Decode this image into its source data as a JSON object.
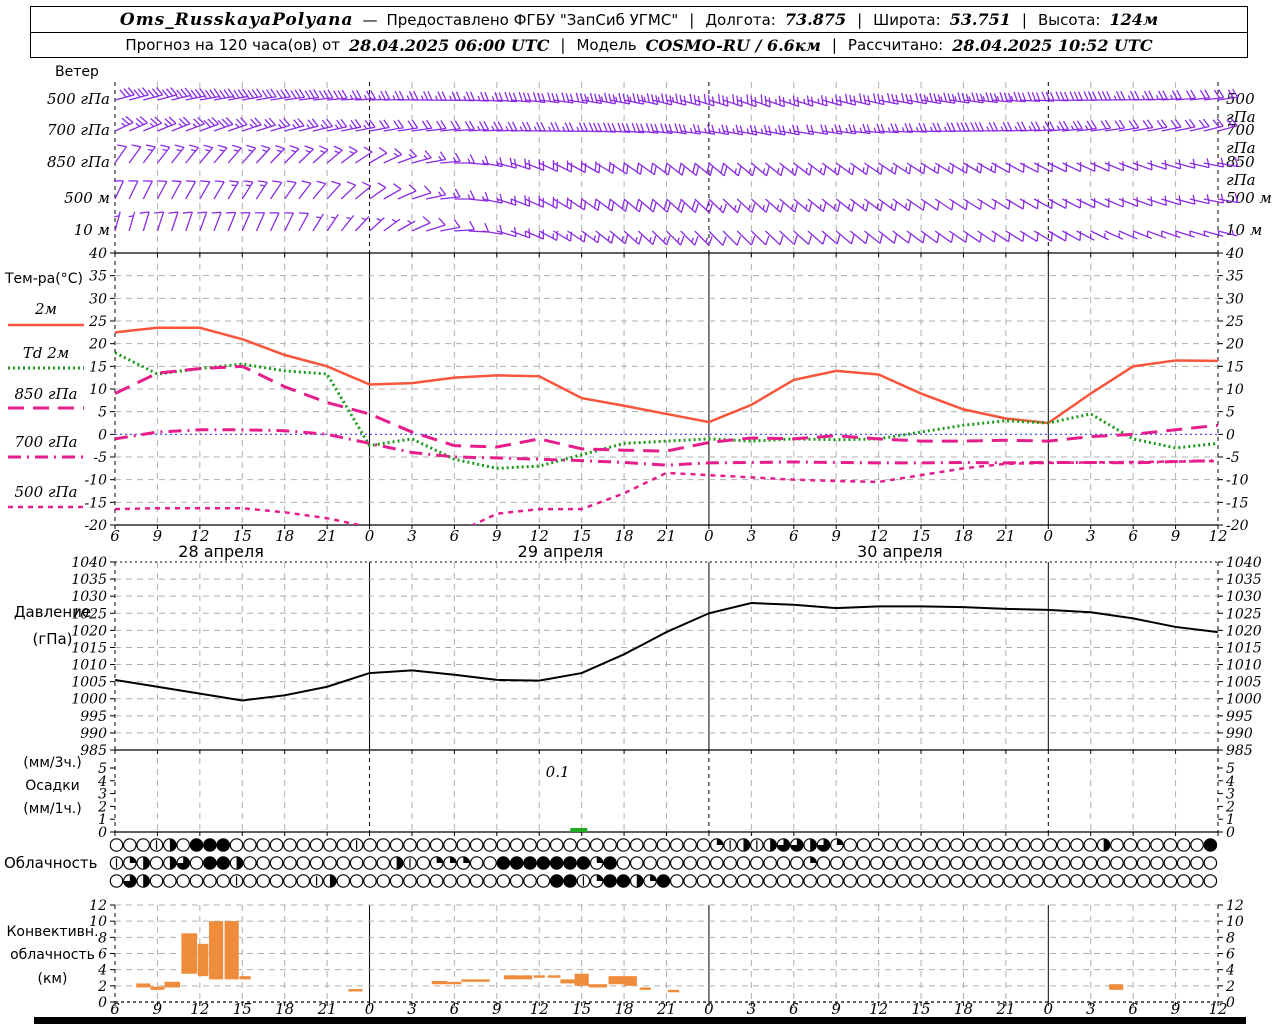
{
  "header": {
    "station": "Oms_RusskayaPolyana",
    "dash": "—",
    "provided_by": "Предоставлено ФГБУ \"ЗапСиб УГМС\"",
    "sep": "|",
    "lon_label": "Долгота:",
    "lon_value": "73.875",
    "lat_label": "Широта:",
    "lat_value": "53.751",
    "alt_label": "Высота:",
    "alt_value": "124м",
    "forecast_label": "Прогноз на 120 часа(ов) от",
    "run_datetime": "28.04.2025 06:00 UTC",
    "model_label": "Модель",
    "model_value": "COSMO-RU / 6.6км",
    "computed_label": "Рассчитано:",
    "computed_datetime": "28.04.2025 10:52 UTC"
  },
  "panel_labels": {
    "wind_title": "Ветер",
    "wind_levels": [
      "500 гПа",
      "700 гПа",
      "850 гПа",
      "500 м",
      "10 м"
    ],
    "temp_title": "Тем-ра(°C)",
    "temp_legend": [
      "2м",
      "Td 2м",
      "850 гПа",
      "700 гПа",
      "500 гПа"
    ],
    "pressure_title_1": "Давление",
    "pressure_title_2": "(гПа)",
    "precip_label_1": "(мм/3ч.)",
    "precip_label_2": "Осадки",
    "precip_label_3": "(мм/1ч.)",
    "cloud_title": "Облачность",
    "conv_title_1": "Конвективн.",
    "conv_title_2": "облачность",
    "conv_title_3": "(км)"
  },
  "axis": {
    "hours": [
      6,
      9,
      12,
      15,
      18,
      21,
      0,
      3,
      6,
      9,
      12,
      15,
      18,
      21,
      0,
      3,
      6,
      9,
      12,
      15,
      18,
      21,
      0,
      3,
      6,
      9,
      12
    ],
    "dates": [
      {
        "label": "28 апреля",
        "center_t": 7.5
      },
      {
        "label": "29 апреля",
        "center_t": 31.5
      },
      {
        "label": "30 апреля",
        "center_t": 55.5
      }
    ],
    "temp_ticks": [
      40,
      35,
      30,
      25,
      20,
      15,
      10,
      5,
      0,
      -5,
      -10,
      -15,
      -20
    ],
    "pressure_ticks": [
      1040,
      1035,
      1030,
      1025,
      1020,
      1015,
      1010,
      1005,
      1000,
      995,
      990,
      985
    ],
    "precip_ticks": [
      5,
      4,
      3,
      2,
      1,
      0
    ],
    "conv_ticks": [
      12,
      10,
      8,
      6,
      4,
      2,
      0
    ]
  },
  "colors": {
    "barb": "#8a2be2",
    "t2m": "#f8553c",
    "td2m": "#1a991a",
    "t850": "#e61e8c",
    "t700": "#e61e8c",
    "t500": "#e61e8c",
    "zero_line": "#3a3af0",
    "pressure": "#000000",
    "precip_bar": "#22aa22",
    "convective": "#ee8c3c",
    "grid": "#b0b0b0"
  },
  "chart_data": [
    {
      "id": "wind",
      "type": "wind-barbs",
      "unit": "kn",
      "x_hours_step": 3,
      "levels": [
        {
          "name": "500 гПа",
          "dir_deg": [
            255,
            255,
            260,
            260,
            262,
            265,
            268,
            270,
            272,
            275,
            278,
            280,
            282,
            285,
            288,
            290,
            288,
            285,
            282,
            280,
            278,
            275,
            272,
            270,
            268,
            265,
            262
          ],
          "speed_kn": [
            30,
            32,
            35,
            33,
            30,
            28,
            25,
            24,
            25,
            28,
            30,
            33,
            35,
            33,
            30,
            28,
            26,
            28,
            30,
            33,
            35,
            33,
            30,
            28,
            25,
            22,
            20
          ]
        },
        {
          "name": "700 гПа",
          "dir_deg": [
            245,
            248,
            250,
            252,
            255,
            258,
            260,
            262,
            265,
            268,
            270,
            272,
            275,
            278,
            280,
            282,
            280,
            278,
            275,
            272,
            270,
            268,
            265,
            262,
            260,
            258,
            255
          ],
          "speed_kn": [
            25,
            26,
            28,
            27,
            25,
            24,
            22,
            21,
            22,
            24,
            26,
            28,
            30,
            28,
            26,
            24,
            22,
            23,
            25,
            27,
            28,
            26,
            24,
            22,
            20,
            19,
            18
          ]
        },
        {
          "name": "850 гПа",
          "dir_deg": [
            215,
            218,
            220,
            222,
            225,
            230,
            240,
            255,
            270,
            285,
            295,
            300,
            305,
            308,
            310,
            310,
            308,
            306,
            304,
            302,
            300,
            298,
            296,
            294,
            290,
            285,
            280
          ],
          "speed_kn": [
            12,
            13,
            14,
            15,
            14,
            13,
            12,
            14,
            16,
            18,
            20,
            22,
            22,
            20,
            18,
            16,
            15,
            14,
            14,
            13,
            13,
            12,
            12,
            11,
            10,
            10,
            10
          ]
        },
        {
          "name": "500 м",
          "dir_deg": [
            205,
            208,
            210,
            212,
            215,
            222,
            235,
            252,
            270,
            288,
            298,
            305,
            310,
            312,
            314,
            312,
            310,
            308,
            306,
            304,
            302,
            300,
            298,
            295,
            290,
            285,
            280
          ],
          "speed_kn": [
            10,
            11,
            12,
            13,
            12,
            11,
            10,
            12,
            15,
            17,
            19,
            21,
            21,
            19,
            17,
            15,
            14,
            13,
            13,
            12,
            12,
            11,
            11,
            10,
            9,
            9,
            9
          ]
        },
        {
          "name": "10 м",
          "dir_deg": [
            195,
            198,
            200,
            203,
            206,
            214,
            228,
            246,
            266,
            286,
            298,
            306,
            312,
            315,
            316,
            314,
            312,
            310,
            308,
            306,
            304,
            302,
            300,
            296,
            292,
            288,
            284
          ],
          "speed_kn": [
            7,
            8,
            9,
            9,
            8,
            7,
            6,
            8,
            10,
            12,
            14,
            15,
            15,
            14,
            12,
            11,
            10,
            10,
            9,
            9,
            8,
            8,
            8,
            7,
            7,
            6,
            6
          ]
        }
      ]
    },
    {
      "id": "temperature",
      "type": "line",
      "ylabel": "Тем-ра(°C)",
      "ylim": [
        -20,
        40
      ],
      "x_hours_step": 3,
      "series": [
        {
          "name": "2м",
          "color": "#f8553c",
          "style": "solid",
          "values": [
            22.5,
            23.5,
            23.5,
            21.0,
            17.5,
            15.0,
            11.0,
            11.3,
            12.5,
            13.0,
            12.8,
            8.0,
            6.3,
            4.5,
            2.7,
            6.5,
            12.0,
            14.0,
            13.2,
            9.0,
            5.5,
            3.5,
            2.5,
            9.0,
            15.0,
            16.3,
            16.2
          ]
        },
        {
          "name": "Td 2м",
          "color": "#1a991a",
          "style": "dotted",
          "values": [
            18.0,
            13.3,
            14.5,
            15.5,
            14.0,
            13.3,
            -2.5,
            -1.0,
            -5.5,
            -7.5,
            -7.0,
            -4.5,
            -2.0,
            -1.5,
            -1.0,
            -1.5,
            -1.0,
            -1.2,
            -1.0,
            0.5,
            2.0,
            3.0,
            2.5,
            4.5,
            -1.0,
            -3.0,
            -2.0
          ]
        },
        {
          "name": "850 гПа",
          "color": "#e61e8c",
          "style": "longdash",
          "values": [
            9.0,
            13.5,
            14.5,
            15.0,
            10.5,
            7.0,
            4.5,
            0.5,
            -2.5,
            -2.8,
            -1.0,
            -3.2,
            -3.5,
            -3.7,
            -1.8,
            -0.8,
            -1.0,
            -0.3,
            -1.0,
            -1.5,
            -1.5,
            -1.3,
            -1.5,
            -0.5,
            0.0,
            1.0,
            2.0
          ]
        },
        {
          "name": "700 гПа",
          "color": "#e61e8c",
          "style": "dashdot",
          "values": [
            -1.0,
            0.5,
            1.0,
            1.0,
            0.8,
            0.0,
            -2.0,
            -4.0,
            -5.0,
            -5.2,
            -5.5,
            -5.8,
            -6.2,
            -6.8,
            -6.3,
            -6.2,
            -6.1,
            -6.2,
            -6.3,
            -6.3,
            -6.2,
            -6.3,
            -6.2,
            -6.2,
            -6.3,
            -6.0,
            -5.8
          ]
        },
        {
          "name": "500 гПа",
          "color": "#e61e8c",
          "style": "shortdash",
          "values": [
            -16.5,
            -16.3,
            -16.3,
            -16.3,
            -17.2,
            -18.5,
            -20.5,
            -22.0,
            -22.0,
            -17.5,
            -16.5,
            -16.5,
            -13.0,
            -8.5,
            -9.0,
            -9.5,
            -10.0,
            -10.3,
            -10.5,
            -9.0,
            -7.5,
            -6.5,
            -6.3,
            -6.2,
            -6.1,
            -6.0,
            -5.9
          ]
        }
      ]
    },
    {
      "id": "pressure",
      "type": "line",
      "ylabel": "Давление (гПа)",
      "ylim": [
        985,
        1040
      ],
      "x_hours_step": 3,
      "series": [
        {
          "name": "Давление",
          "color": "#000000",
          "style": "solid",
          "values": [
            1005.5,
            1003.5,
            1001.5,
            999.5,
            1001.0,
            1003.5,
            1007.5,
            1008.3,
            1007.0,
            1005.5,
            1005.3,
            1007.5,
            1013.0,
            1019.5,
            1025.0,
            1028.0,
            1027.5,
            1026.5,
            1027.0,
            1027.0,
            1026.8,
            1026.3,
            1026.0,
            1025.3,
            1023.5,
            1021.0,
            1019.5
          ]
        }
      ]
    },
    {
      "id": "precipitation",
      "type": "bar",
      "ylim": [
        0,
        5
      ],
      "bars": [
        {
          "t0": 32.2,
          "t1": 33.4,
          "value": 0.1
        }
      ],
      "annotation": {
        "label": "0.1",
        "t": 31.3,
        "y_value": 4.3
      }
    },
    {
      "id": "cloudiness",
      "type": "symbol-rows",
      "codes_legend": {
        "0": "clear",
        "1": "trace",
        "2": "quarter",
        "4": "half",
        "6": "three-quarter",
        "8": "overcast"
      },
      "rows": [
        "00014088800000000010000000000000000000000000021414664620000000000000000000400000008",
        "12404608840000000000041022200888888828000000000000002000000000000000000000000000000",
        "06400000010000014000000000000000088128842800000000000000000000000000000000000000000"
      ]
    },
    {
      "id": "convective",
      "type": "floating-bar",
      "unit": "км",
      "ylim": [
        0,
        12
      ],
      "bars": [
        [
          1.5,
          2.5,
          1.8,
          2.3
        ],
        [
          2.5,
          3.5,
          1.5,
          1.9
        ],
        [
          3.5,
          4.6,
          1.8,
          2.5
        ],
        [
          4.7,
          5.8,
          3.5,
          8.5
        ],
        [
          5.85,
          6.6,
          3.2,
          7.2
        ],
        [
          6.65,
          7.65,
          2.8,
          10.0
        ],
        [
          7.75,
          8.75,
          2.8,
          10.0
        ],
        [
          8.8,
          9.6,
          2.8,
          3.2
        ],
        [
          16.5,
          17.5,
          1.3,
          1.6
        ],
        [
          22.4,
          23.5,
          2.2,
          2.6
        ],
        [
          23.5,
          24.5,
          2.2,
          2.5
        ],
        [
          24.5,
          26.5,
          2.5,
          2.8
        ],
        [
          27.5,
          29.5,
          2.8,
          3.3
        ],
        [
          29.6,
          30.4,
          3.0,
          3.3
        ],
        [
          30.6,
          31.5,
          3.0,
          3.3
        ],
        [
          31.5,
          32.5,
          2.3,
          2.8
        ],
        [
          32.5,
          33.5,
          2.0,
          3.5
        ],
        [
          33.5,
          34.8,
          1.8,
          2.2
        ],
        [
          34.9,
          36.0,
          2.2,
          3.2
        ],
        [
          36.0,
          36.9,
          2.0,
          3.2
        ],
        [
          37.1,
          37.9,
          1.5,
          1.8
        ],
        [
          39.1,
          39.9,
          1.2,
          1.5
        ],
        [
          70.3,
          71.3,
          1.5,
          2.2
        ]
      ]
    }
  ]
}
